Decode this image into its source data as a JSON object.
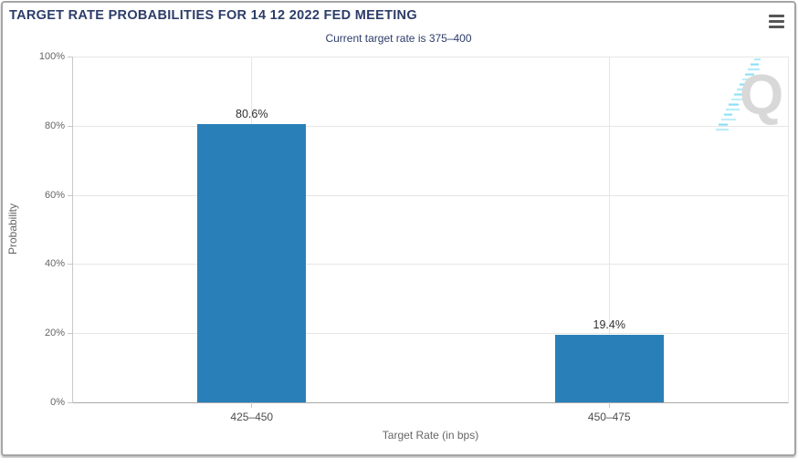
{
  "header": {
    "title": "TARGET RATE PROBABILITIES FOR 14 12 2022 FED MEETING",
    "subtitle": "Current target rate is 375–400",
    "menu_icon": "hamburger-menu"
  },
  "colors": {
    "title_navy": "#2d3c69",
    "bar_blue": "#2980b8",
    "gridline": "#e6e6e6",
    "axis_label_gray": "#666666",
    "value_label": "#2f2f2f",
    "frame_border": "#a5a5a5",
    "watermark_gray": "#d8d8d8",
    "watermark_cyan": "#7fdcf4"
  },
  "watermark": {
    "letter": "Q"
  },
  "chart_data": {
    "type": "bar",
    "title": "TARGET RATE PROBABILITIES FOR 14 12 2022 FED MEETING",
    "subtitle": "Current target rate is 375–400",
    "categories": [
      "425–450",
      "450–475"
    ],
    "values": [
      80.6,
      19.4
    ],
    "value_labels": [
      "80.6%",
      "19.4%"
    ],
    "xlabel": "Target Rate (in bps)",
    "ylabel": "Probability",
    "ylim": [
      0,
      100
    ],
    "yticks": [
      0,
      20,
      40,
      60,
      80,
      100
    ],
    "ytick_labels": [
      "0%",
      "20%",
      "40%",
      "60%",
      "80%",
      "100%"
    ],
    "grid": true,
    "legend": "none",
    "bar_color": "#2980b8",
    "bar_width_frac": 0.152
  }
}
